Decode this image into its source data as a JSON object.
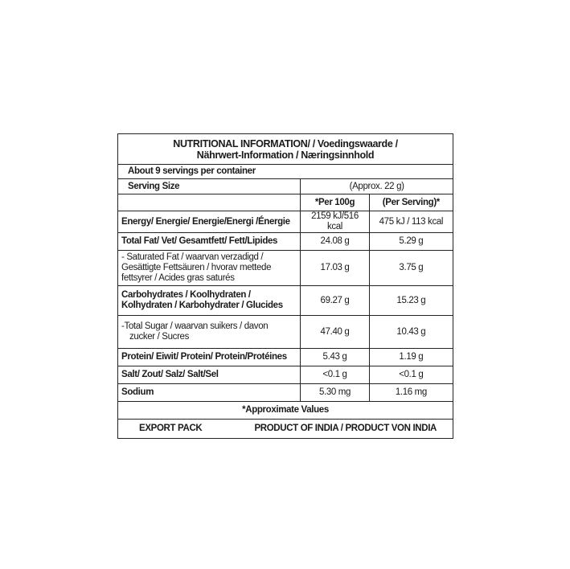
{
  "title_line1": "NUTRITIONAL INFORMATION/ / Voedingswaarde /",
  "title_line2": "Nährwert-Information / Næringsinnhold",
  "servings_per_container": "About 9 servings per container",
  "serving_size_label": "Serving Size",
  "serving_size_value": "(Approx. 22 g)",
  "columns": [
    "*Per 100g",
    "(Per Serving)*"
  ],
  "rows": [
    {
      "label": "Energy/ Energie/ Energie/Energi /Énergie",
      "bold": true,
      "per100": "2159 kJ/516 kcal",
      "serving": "475 kJ / 113 kcal"
    },
    {
      "label": "Total Fat/ Vet/ Gesamtfett/ Fett/Lipides",
      "bold": true,
      "per100": "24.08 g",
      "serving": "5.29 g"
    },
    {
      "label_lines": [
        "- Saturated Fat / waarvan verzadigd /",
        " Gesättigte Fettsäuren / hvorav mettede",
        " fettsyrer / Acides gras saturés"
      ],
      "bold": false,
      "per100": "17.03 g",
      "serving": "3.75 g"
    },
    {
      "label_lines": [
        "Carbohydrates / Koolhydraten /",
        "Kolhydraten / Karbohydrater / Glucides"
      ],
      "bold": true,
      "per100": "69.27 g",
      "serving": "15.23 g"
    },
    {
      "label_lines": [
        "-Total Sugar / waarvan suikers / davon",
        "zucker / Sucres"
      ],
      "bold": false,
      "per100": "47.40 g",
      "serving": "10.43 g"
    },
    {
      "label": "Protein/ Eiwit/ Protein/ Protein/Protéines",
      "bold": true,
      "per100": "5.43 g",
      "serving": "1.19 g"
    },
    {
      "label": "Salt/ Zout/ Salz/ Salt/Sel",
      "bold": true,
      "per100": "<0.1 g",
      "serving": "<0.1 g"
    },
    {
      "label": "Sodium",
      "bold": true,
      "per100": "5.30 mg",
      "serving": "1.16 mg"
    }
  ],
  "footnote": "*Approximate Values",
  "export_pack": "EXPORT PACK",
  "origin": "PRODUCT OF INDIA / PRODUCT VON INDIA"
}
